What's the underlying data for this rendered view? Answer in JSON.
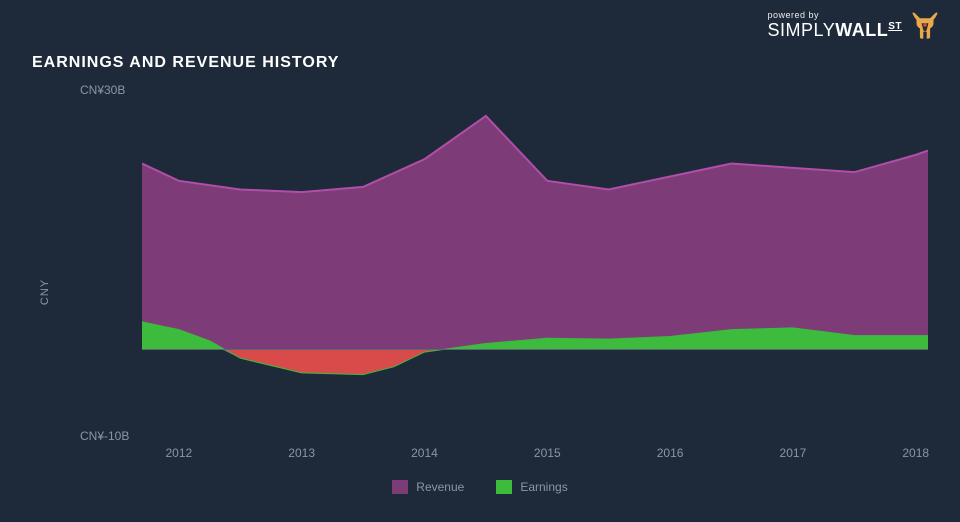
{
  "logo": {
    "powered": "powered by",
    "brand_light": "SIMPLY",
    "brand_bold": "WALL",
    "brand_suffix": "ST"
  },
  "title": "EARNINGS AND REVENUE HISTORY",
  "chart": {
    "type": "area",
    "background_color": "#1e2a3a",
    "text_color": "#8a95a5",
    "ylabel": "CNY",
    "ylabel_fontsize": 11,
    "ytick_fontsize": 12,
    "xtick_fontsize": 12,
    "yticks": [
      {
        "label": "CN¥30B",
        "value": 30
      },
      {
        "label": "CN¥-10B",
        "value": -10
      }
    ],
    "ylim": [
      -10,
      30
    ],
    "xlim": [
      2011.7,
      2018.1
    ],
    "xticks": [
      2012,
      2013,
      2014,
      2015,
      2016,
      2017,
      2018
    ],
    "zero_line_color": "#5a6575",
    "zero_line_width": 1,
    "series": {
      "revenue": {
        "label": "Revenue",
        "fill_color": "#7d3c78",
        "stroke_color": "#b04ea8",
        "stroke_width": 2,
        "x": [
          2011.7,
          2012,
          2012.5,
          2013,
          2013.5,
          2014,
          2014.5,
          2015,
          2015.5,
          2016,
          2016.5,
          2017,
          2017.5,
          2018,
          2018.1
        ],
        "y": [
          21.5,
          19.5,
          18.5,
          18.2,
          18.8,
          22.0,
          27.0,
          19.5,
          18.5,
          20.0,
          21.5,
          21.0,
          20.5,
          22.5,
          23.0
        ]
      },
      "earnings": {
        "label": "Earnings",
        "fill_positive": "#3dbb3d",
        "fill_negative": "#d94a4a",
        "stroke_color": "#3dbb3d",
        "stroke_width": 1,
        "x": [
          2011.7,
          2012,
          2012.25,
          2012.5,
          2013,
          2013.5,
          2013.75,
          2014,
          2014.25,
          2014.5,
          2015,
          2015.5,
          2016,
          2016.5,
          2017,
          2017.5,
          2018,
          2018.1
        ],
        "y": [
          3.2,
          2.3,
          1.0,
          -1.0,
          -2.7,
          -2.9,
          -2.0,
          -0.3,
          0.2,
          0.7,
          1.3,
          1.2,
          1.5,
          2.3,
          2.5,
          1.6,
          1.6,
          1.6
        ]
      }
    },
    "legend": [
      {
        "label": "Revenue",
        "color": "#7d3c78"
      },
      {
        "label": "Earnings",
        "color": "#3dbb3d"
      }
    ]
  }
}
